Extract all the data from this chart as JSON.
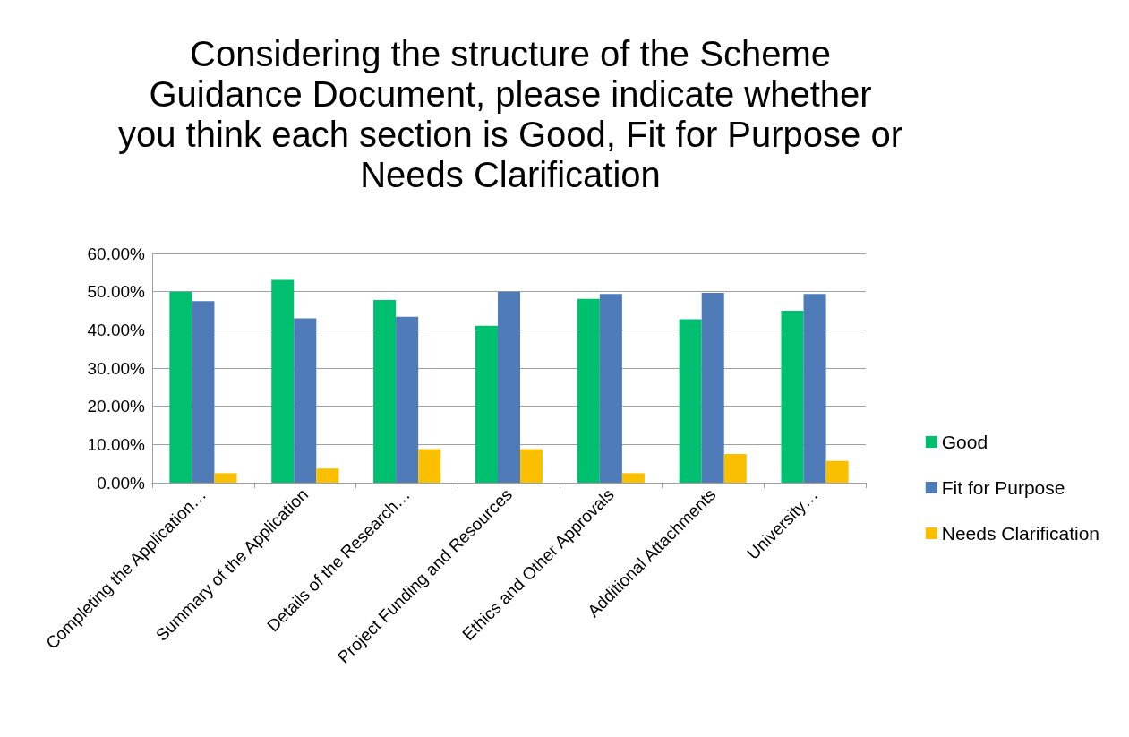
{
  "chart_data": {
    "type": "bar",
    "title": "Considering the structure of the Scheme Guidance Document, please indicate whether you think each section is Good, Fit for Purpose or Needs Clarification",
    "categories": [
      "Completing the Application…",
      "Summary of the Application",
      "Details of the Research…",
      "Project Funding and Resources",
      "Ethics and Other Approvals",
      "Additional Attachments",
      "University…"
    ],
    "series": [
      {
        "name": "Good",
        "color": "#00bf6f",
        "values": [
          50.0,
          53.1,
          47.8,
          41.1,
          48.1,
          42.8,
          45.0
        ]
      },
      {
        "name": "Fit for Purpose",
        "color": "#4f7cb8",
        "values": [
          47.5,
          43.0,
          43.4,
          50.0,
          49.4,
          49.7,
          49.4
        ]
      },
      {
        "name": "Needs Clarification",
        "color": "#fac000",
        "values": [
          2.5,
          3.7,
          8.8,
          8.8,
          2.5,
          7.5,
          5.7
        ]
      }
    ],
    "ylim": [
      0,
      60
    ],
    "yticks": [
      {
        "value": 0,
        "label": "0.00%"
      },
      {
        "value": 10,
        "label": "10.00%"
      },
      {
        "value": 20,
        "label": "20.00%"
      },
      {
        "value": 30,
        "label": "30.00%"
      },
      {
        "value": 40,
        "label": "40.00%"
      },
      {
        "value": 50,
        "label": "50.00%"
      },
      {
        "value": 60,
        "label": "60.00%"
      }
    ],
    "grid": "y",
    "legend": "right"
  }
}
